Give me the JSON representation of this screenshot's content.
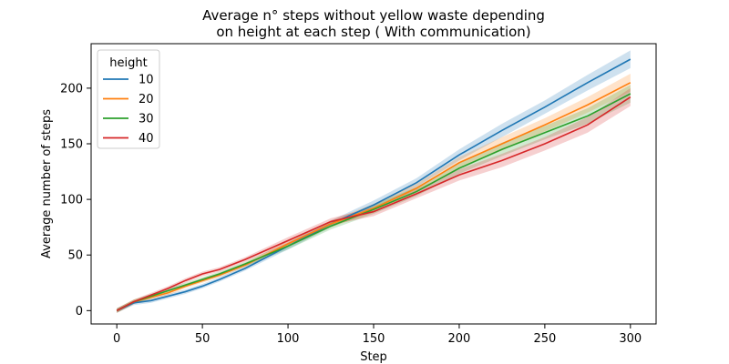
{
  "chart_data": {
    "type": "line",
    "title_line1": "Average n° steps without yellow waste depending",
    "title_line2": "on height at each step ( With communication)",
    "xlabel": "Step",
    "ylabel": "Average number of steps",
    "xlim": [
      -15,
      315
    ],
    "ylim": [
      -12,
      240
    ],
    "xticks": [
      0,
      50,
      100,
      150,
      200,
      250,
      300
    ],
    "yticks": [
      0,
      50,
      100,
      150,
      200
    ],
    "legend": {
      "title": "height",
      "placement": "top-left"
    },
    "x": [
      0,
      10,
      20,
      30,
      40,
      50,
      60,
      75,
      100,
      125,
      150,
      175,
      200,
      225,
      250,
      275,
      300
    ],
    "series": [
      {
        "name": "10",
        "color": "#1f77b4",
        "band": [
          2,
          2,
          2,
          2,
          2,
          2,
          2,
          2,
          3,
          3,
          4,
          4,
          5,
          6,
          6,
          7,
          8
        ],
        "values": [
          0,
          7,
          9,
          13,
          17,
          22,
          28,
          38,
          58,
          78,
          95,
          115,
          140,
          162,
          183,
          205,
          226
        ]
      },
      {
        "name": "20",
        "color": "#ff7f0e",
        "band": [
          2,
          2,
          2,
          2,
          2,
          2,
          2,
          2,
          3,
          3,
          4,
          4,
          5,
          6,
          6,
          7,
          8
        ],
        "values": [
          0,
          8,
          12,
          16,
          22,
          27,
          32,
          41,
          60,
          78,
          92,
          110,
          133,
          150,
          167,
          185,
          205
        ]
      },
      {
        "name": "30",
        "color": "#2ca02c",
        "band": [
          2,
          2,
          2,
          2,
          2,
          2,
          2,
          2,
          3,
          3,
          4,
          4,
          5,
          6,
          6,
          7,
          8
        ],
        "values": [
          0,
          8,
          13,
          18,
          23,
          28,
          33,
          42,
          58,
          76,
          91,
          107,
          128,
          145,
          160,
          175,
          195
        ]
      },
      {
        "name": "40",
        "color": "#d62728",
        "band": [
          2,
          2,
          2,
          2,
          2,
          2,
          2,
          2,
          3,
          3,
          4,
          4,
          5,
          6,
          6,
          7,
          8
        ],
        "values": [
          0,
          8,
          14,
          20,
          27,
          33,
          37,
          46,
          63,
          80,
          89,
          105,
          122,
          135,
          150,
          167,
          192
        ]
      }
    ]
  }
}
